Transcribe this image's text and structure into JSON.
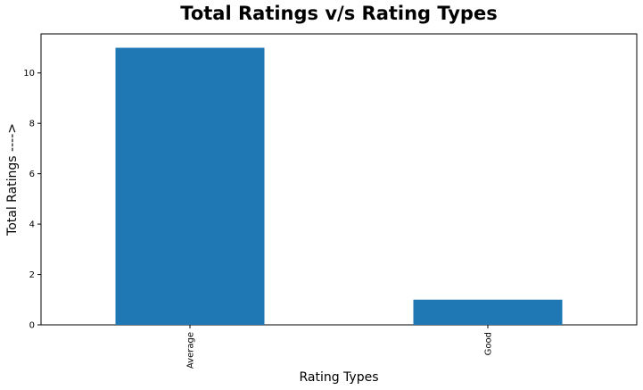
{
  "chart_data": {
    "type": "bar",
    "title": "Total Ratings v/s Rating Types",
    "xlabel": "Rating Types",
    "ylabel": "Total Ratings ---->",
    "categories": [
      "Average",
      "Good"
    ],
    "values": [
      11,
      1
    ],
    "ylim": [
      0,
      11.55
    ],
    "yticks": [
      0,
      2,
      4,
      6,
      8,
      10
    ],
    "grid": false,
    "legend": "none",
    "bar_color": "#1f77b4"
  }
}
